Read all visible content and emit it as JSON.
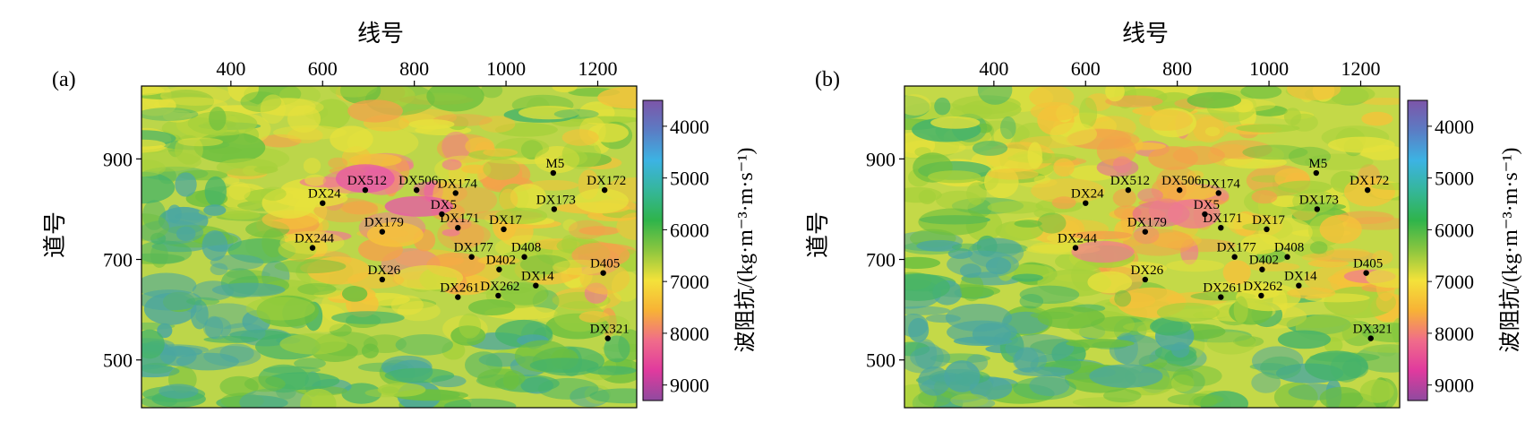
{
  "chart_data": [
    {
      "type": "heatmap",
      "panel_label": "(a)",
      "xlabel": "线号",
      "ylabel": "道号",
      "colorbar_label": "波阻抗/(kg·m⁻³·m·s⁻¹)",
      "x_ticks": [
        400,
        600,
        800,
        1000,
        1200
      ],
      "y_ticks": [
        500,
        700,
        900
      ],
      "xlim": [
        205,
        1285
      ],
      "ylim": [
        405,
        1045
      ],
      "colorbar_ticks": [
        4000,
        5000,
        6000,
        7000,
        8000,
        9000
      ],
      "colorbar_range": [
        3500,
        9300
      ],
      "grid": false
    },
    {
      "type": "heatmap",
      "panel_label": "(b)",
      "xlabel": "线号",
      "ylabel": "道号",
      "colorbar_label": "波阻抗/(kg·m⁻³·m·s⁻¹)",
      "x_ticks": [
        400,
        600,
        800,
        1000,
        1200
      ],
      "y_ticks": [
        500,
        700,
        900
      ],
      "xlim": [
        205,
        1285
      ],
      "ylim": [
        405,
        1045
      ],
      "colorbar_ticks": [
        4000,
        5000,
        6000,
        7000,
        8000,
        9000
      ],
      "colorbar_range": [
        3500,
        9300
      ],
      "grid": false
    }
  ],
  "wells": [
    {
      "name": "M5",
      "x": 1103,
      "y": 872
    },
    {
      "name": "DX172",
      "x": 1215,
      "y": 838
    },
    {
      "name": "DX173",
      "x": 1105,
      "y": 800
    },
    {
      "name": "DX174",
      "x": 890,
      "y": 832
    },
    {
      "name": "DX506",
      "x": 805,
      "y": 838
    },
    {
      "name": "DX512",
      "x": 693,
      "y": 838
    },
    {
      "name": "DX24",
      "x": 600,
      "y": 812
    },
    {
      "name": "DX5",
      "x": 860,
      "y": 790
    },
    {
      "name": "DX171",
      "x": 895,
      "y": 763
    },
    {
      "name": "DX17",
      "x": 995,
      "y": 760
    },
    {
      "name": "DX179",
      "x": 730,
      "y": 755
    },
    {
      "name": "DX244",
      "x": 578,
      "y": 723
    },
    {
      "name": "DX177",
      "x": 925,
      "y": 705
    },
    {
      "name": "D408",
      "x": 1040,
      "y": 705
    },
    {
      "name": "D402",
      "x": 985,
      "y": 680
    },
    {
      "name": "D405",
      "x": 1212,
      "y": 673
    },
    {
      "name": "DX26",
      "x": 730,
      "y": 660
    },
    {
      "name": "DX14",
      "x": 1065,
      "y": 648
    },
    {
      "name": "DX261",
      "x": 895,
      "y": 625
    },
    {
      "name": "DX262",
      "x": 983,
      "y": 628
    },
    {
      "name": "DX321",
      "x": 1222,
      "y": 543
    }
  ],
  "palette": {
    "colorbar_stops": [
      "#7d55a8",
      "#5b7cc4",
      "#3cb3e3",
      "#35b69a",
      "#2fb44b",
      "#8cc63f",
      "#f4e23a",
      "#f7b236",
      "#f06c8a",
      "#e03a9e",
      "#8f4a9f"
    ],
    "map_colors": [
      "#4ba7a0",
      "#45b36a",
      "#6cbf3f",
      "#a6d13b",
      "#e6e13c",
      "#f5c23a",
      "#f3a24a",
      "#ef7a92",
      "#e65aa7"
    ]
  }
}
